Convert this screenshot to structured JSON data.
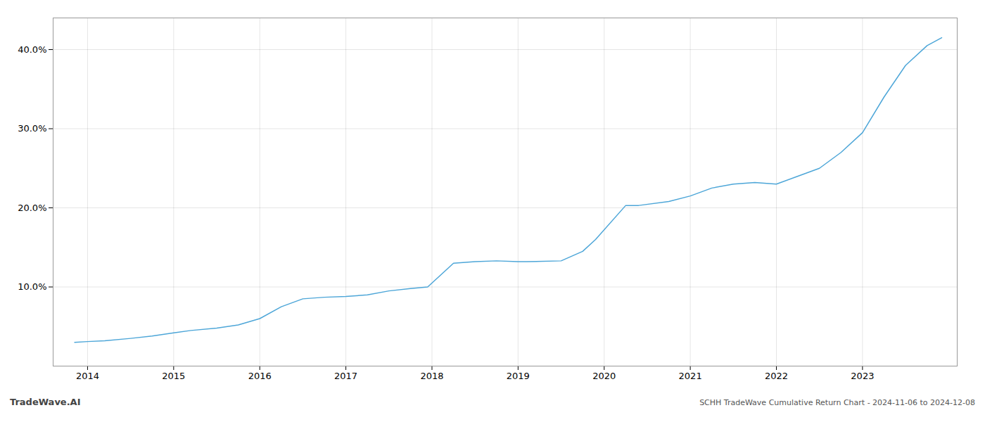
{
  "chart_data": {
    "type": "line",
    "title": "SCHH TradeWave Cumulative Return Chart - 2024-11-06 to 2024-12-08",
    "annotations": [
      "TradeWave.AI"
    ],
    "x": [
      2013.85,
      2014.0,
      2014.2,
      2014.5,
      2014.75,
      2015.0,
      2015.2,
      2015.5,
      2015.75,
      2016.0,
      2016.25,
      2016.5,
      2016.75,
      2017.0,
      2017.25,
      2017.5,
      2017.75,
      2017.95,
      2018.25,
      2018.5,
      2018.75,
      2019.0,
      2019.1,
      2019.5,
      2019.75,
      2019.9,
      2020.25,
      2020.4,
      2020.75,
      2021.0,
      2021.25,
      2021.5,
      2021.75,
      2022.0,
      2022.25,
      2022.5,
      2022.75,
      2023.0,
      2023.25,
      2023.5,
      2023.75,
      2023.92
    ],
    "values": [
      3.0,
      3.1,
      3.2,
      3.5,
      3.8,
      4.2,
      4.5,
      4.8,
      5.2,
      6.0,
      7.5,
      8.5,
      8.7,
      8.8,
      9.0,
      9.5,
      9.8,
      10.0,
      13.0,
      13.2,
      13.3,
      13.2,
      13.2,
      13.3,
      14.5,
      16.0,
      20.3,
      20.3,
      20.8,
      21.5,
      22.5,
      23.0,
      23.2,
      23.0,
      24.0,
      25.0,
      27.0,
      29.5,
      34.0,
      38.0,
      40.5,
      41.5
    ],
    "color": "#4da6d8",
    "xlim": [
      2013.6,
      2024.1
    ],
    "ylim": [
      0,
      44
    ],
    "xticks": [
      2014,
      2015,
      2016,
      2017,
      2018,
      2019,
      2020,
      2021,
      2022,
      2023
    ],
    "yticks": [
      {
        "value": 10.0,
        "label": "10.0%"
      },
      {
        "value": 20.0,
        "label": "20.0%"
      },
      {
        "value": 30.0,
        "label": "30.0%"
      },
      {
        "value": 40.0,
        "label": "40.0%"
      }
    ],
    "grid": true
  }
}
